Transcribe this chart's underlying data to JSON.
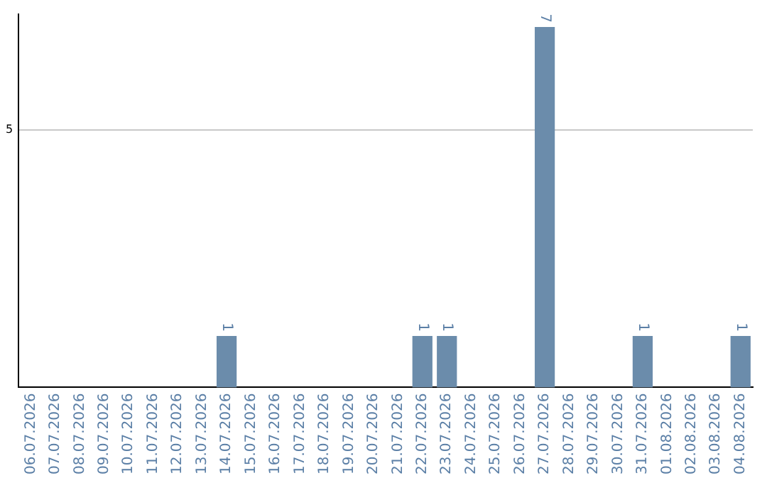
{
  "chart_data": {
    "type": "bar",
    "categories": [
      "06.07.2026",
      "07.07.2026",
      "08.07.2026",
      "09.07.2026",
      "10.07.2026",
      "11.07.2026",
      "12.07.2026",
      "13.07.2026",
      "14.07.2026",
      "15.07.2026",
      "16.07.2026",
      "17.07.2026",
      "18.07.2026",
      "19.07.2026",
      "20.07.2026",
      "21.07.2026",
      "22.07.2026",
      "23.07.2026",
      "24.07.2026",
      "25.07.2026",
      "26.07.2026",
      "27.07.2026",
      "28.07.2026",
      "29.07.2026",
      "30.07.2026",
      "31.07.2026",
      "01.08.2026",
      "02.08.2026",
      "03.08.2026",
      "04.08.2026"
    ],
    "values": [
      0,
      0,
      0,
      0,
      0,
      0,
      0,
      0,
      1,
      0,
      0,
      0,
      0,
      0,
      0,
      0,
      1,
      1,
      0,
      0,
      0,
      7,
      0,
      0,
      0,
      1,
      0,
      0,
      0,
      1
    ],
    "value_labels": [
      null,
      null,
      null,
      null,
      null,
      null,
      null,
      null,
      "1",
      null,
      null,
      null,
      null,
      null,
      null,
      null,
      "1",
      "1",
      null,
      null,
      null,
      "7",
      null,
      null,
      null,
      "1",
      null,
      null,
      null,
      "1"
    ],
    "color": "#6b8cab",
    "ylim": [
      0,
      7.25
    ],
    "yticks": [
      5
    ],
    "grid": "y",
    "legend": false
  }
}
